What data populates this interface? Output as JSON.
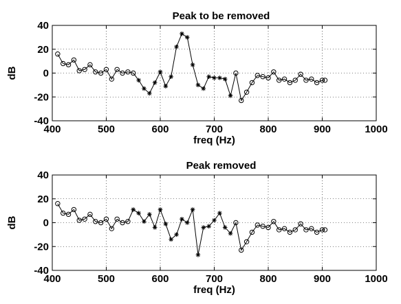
{
  "chart_data": [
    {
      "type": "line",
      "title": "Peak to be removed",
      "xlabel": "freq (Hz)",
      "ylabel": "dB",
      "xlim": [
        400,
        1000
      ],
      "ylim": [
        -40,
        40
      ],
      "xticks": [
        400,
        500,
        600,
        700,
        800,
        900,
        1000
      ],
      "yticks": [
        -40,
        -20,
        0,
        20,
        40
      ],
      "grid": true,
      "x": [
        410,
        420,
        430,
        440,
        450,
        460,
        470,
        480,
        490,
        500,
        510,
        520,
        530,
        540,
        550,
        560,
        570,
        580,
        590,
        600,
        610,
        620,
        630,
        640,
        650,
        660,
        670,
        680,
        690,
        700,
        710,
        720,
        730,
        740,
        750,
        760,
        770,
        780,
        790,
        800,
        810,
        820,
        830,
        840,
        850,
        860,
        870,
        880,
        890,
        900,
        905
      ],
      "y": [
        16,
        8,
        7,
        11,
        2,
        3,
        7,
        1,
        0,
        3,
        -5,
        3,
        0,
        1,
        0,
        -6,
        -13,
        -17,
        -8,
        1,
        -11,
        -3,
        22,
        33,
        30,
        7,
        -10,
        -13,
        -3,
        -4,
        -4,
        -5,
        -19,
        0,
        -23,
        -16,
        -8,
        -2,
        -3,
        -4,
        1,
        -6,
        -5,
        -8,
        -6,
        -1,
        -6,
        -5,
        -8,
        -6,
        -6
      ],
      "marker": [
        "o",
        "o",
        "o",
        "o",
        "o",
        "o",
        "o",
        "o",
        "o",
        "o",
        "o",
        "o",
        "o",
        "o",
        "o",
        "*",
        "*",
        "*",
        "*",
        "*",
        "*",
        "*",
        "*",
        "*",
        "*",
        "*",
        "*",
        "*",
        "*",
        "*",
        "*",
        "*",
        "*",
        "o",
        "o",
        "o",
        "o",
        "o",
        "o",
        "o",
        "o",
        "o",
        "o",
        "o",
        "o",
        "o",
        "o",
        "o",
        "o",
        "o",
        "o"
      ]
    },
    {
      "type": "line",
      "title": "Peak removed",
      "xlabel": "freq (Hz)",
      "ylabel": "dB",
      "xlim": [
        400,
        1000
      ],
      "ylim": [
        -40,
        40
      ],
      "xticks": [
        400,
        500,
        600,
        700,
        800,
        900,
        1000
      ],
      "yticks": [
        -40,
        -20,
        0,
        20,
        40
      ],
      "grid": true,
      "x": [
        410,
        420,
        430,
        440,
        450,
        460,
        470,
        480,
        490,
        500,
        510,
        520,
        530,
        540,
        550,
        560,
        570,
        580,
        590,
        600,
        610,
        620,
        630,
        640,
        650,
        660,
        670,
        680,
        690,
        700,
        710,
        720,
        730,
        740,
        750,
        760,
        770,
        780,
        790,
        800,
        810,
        820,
        830,
        840,
        850,
        860,
        870,
        880,
        890,
        900,
        905
      ],
      "y": [
        16,
        8,
        7,
        11,
        2,
        3,
        7,
        1,
        0,
        3,
        -5,
        3,
        0,
        1,
        11,
        8,
        1,
        7,
        -4,
        11,
        -1,
        -14,
        -10,
        3,
        0,
        11,
        -27,
        -4,
        -3,
        2,
        8,
        -4,
        -9,
        0,
        -23,
        -16,
        -8,
        -2,
        -3,
        -4,
        1,
        -6,
        -5,
        -8,
        -6,
        -1,
        -6,
        -5,
        -8,
        -6,
        -6
      ],
      "marker": [
        "o",
        "o",
        "o",
        "o",
        "o",
        "o",
        "o",
        "o",
        "o",
        "o",
        "o",
        "o",
        "o",
        "o",
        "*",
        "*",
        "*",
        "*",
        "*",
        "*",
        "*",
        "*",
        "*",
        "*",
        "*",
        "*",
        "*",
        "*",
        "*",
        "*",
        "*",
        "*",
        "*",
        "o",
        "o",
        "o",
        "o",
        "o",
        "o",
        "o",
        "o",
        "o",
        "o",
        "o",
        "o",
        "o",
        "o",
        "o",
        "o",
        "o",
        "o"
      ]
    }
  ]
}
